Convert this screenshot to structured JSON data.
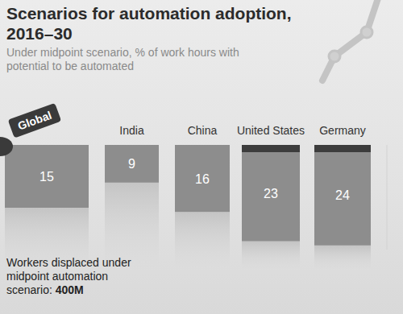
{
  "chart_data": {
    "type": "bar",
    "title": "Scenarios for automation adoption, 2016–30",
    "subtitle": "Under midpoint scenario, % of work hours with potential to be automated",
    "categories": [
      "Global",
      "India",
      "China",
      "United States",
      "Germany"
    ],
    "values": [
      15,
      9,
      16,
      23,
      24
    ],
    "color": "#8d8d8d",
    "ylim": [
      0,
      25
    ],
    "tick_labels": false,
    "data_labels": true,
    "annotation": "Workers displaced under midpoint automation scenario:",
    "annotation_value": "400M"
  }
}
